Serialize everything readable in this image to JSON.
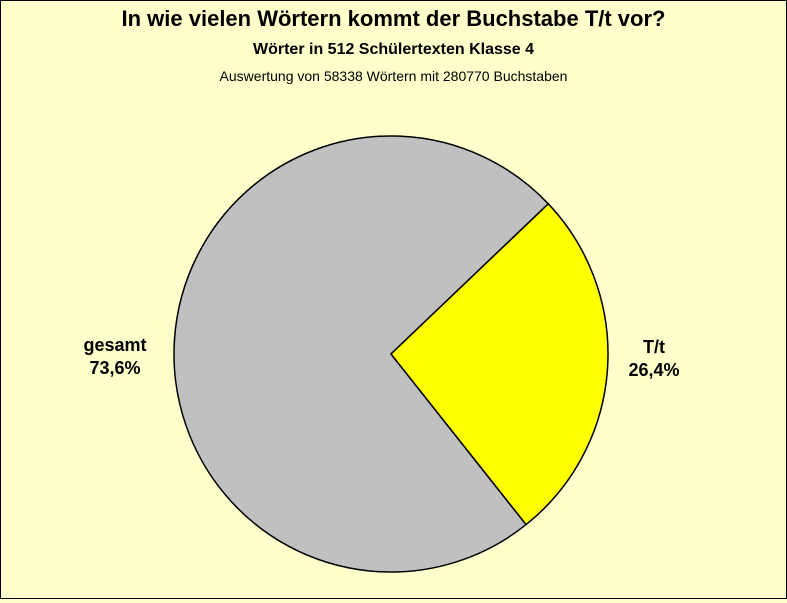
{
  "title": "In wie vielen Wörtern kommt der Buchstabe T/t vor?",
  "subtitle": "Wörter in 512 Schülertexten Klasse 4",
  "note": "Auswertung von 58338 Wörtern mit 280770 Buchstaben",
  "colors": {
    "background": "#ffffcc",
    "gesamt": "#c0c0c0",
    "tt": "#ffff00",
    "stroke": "#000000"
  },
  "chart_data": {
    "type": "pie",
    "title": "In wie vielen Wörtern kommt der Buchstabe T/t vor?",
    "subtitle": "Wörter in 512 Schülertexten Klasse 4",
    "note": "Auswertung von 58338 Wörtern mit 280770 Buchstaben",
    "slices": [
      {
        "name": "gesamt",
        "value": 73.6,
        "label": "73,6%",
        "color": "#c0c0c0"
      },
      {
        "name": "T/t",
        "value": 26.4,
        "label": "26,4%",
        "color": "#ffff00"
      }
    ],
    "legend": "none",
    "grid": false
  }
}
